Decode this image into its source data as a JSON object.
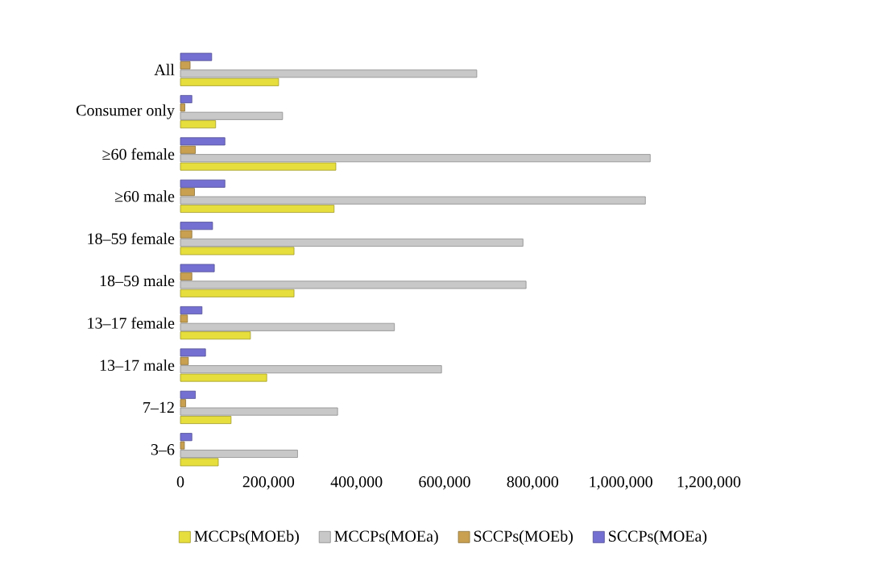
{
  "chart_data": {
    "type": "bar",
    "orientation": "horizontal",
    "categories": [
      "All",
      "Consumer only",
      "≥60 female",
      "≥60 male",
      "18–59 female",
      "18–59 male",
      "13–17 female",
      "13–17 male",
      "7–12",
      "3–6"
    ],
    "series": [
      {
        "name": "MCCPs(MOEb)",
        "color": "#e6de3c",
        "values": [
          223000,
          80000,
          353000,
          349000,
          258000,
          258000,
          159000,
          196000,
          115000,
          86000
        ]
      },
      {
        "name": "MCCPs(MOEa)",
        "color": "#c8c8c8",
        "values": [
          673000,
          232000,
          1067000,
          1056000,
          778000,
          785000,
          486000,
          593000,
          357000,
          266000
        ]
      },
      {
        "name": "SCCPs(MOEb)",
        "color": "#c8a050",
        "values": [
          22000,
          10000,
          34000,
          32000,
          26000,
          26000,
          16000,
          18000,
          12000,
          9000
        ]
      },
      {
        "name": "SCCPs(MOEa)",
        "color": "#7470d2",
        "values": [
          71000,
          26000,
          101000,
          101000,
          73000,
          77000,
          49000,
          57000,
          34000,
          26000
        ]
      }
    ],
    "xlim": [
      0,
      1200000
    ],
    "xticks": [
      0,
      {
        "value": 200000,
        "label": "200,000"
      },
      {
        "value": 400000,
        "label": "400,000"
      },
      {
        "value": 600000,
        "label": "600,000"
      },
      {
        "value": 800000,
        "label": "800,000"
      },
      {
        "value": 1000000,
        "label": "1,000,000"
      },
      {
        "value": 1200000,
        "label": "1,200,000"
      }
    ],
    "legend": "bottom"
  }
}
